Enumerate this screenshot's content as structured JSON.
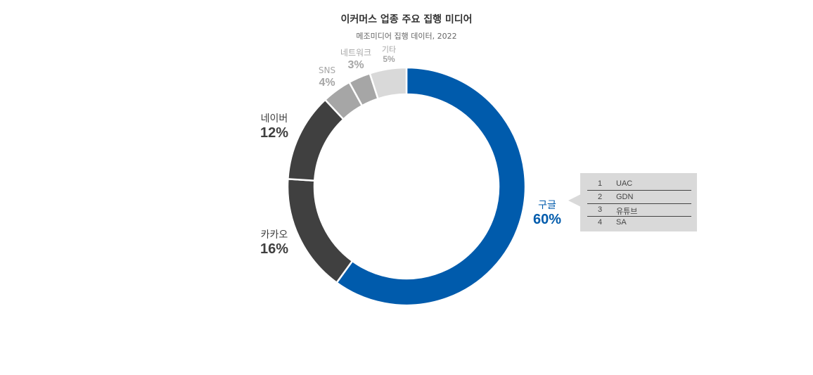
{
  "header": {
    "title": "이커머스 업종 주요 집행 미디어",
    "subtitle": "메조미디어 집행 데이터, 2022"
  },
  "chart_data": {
    "type": "pie",
    "donut": true,
    "title": "이커머스 업종 주요 집행 미디어",
    "subtitle": "메조미디어 집행 데이터, 2022",
    "slices": [
      {
        "label": "구글",
        "value": 60,
        "display": "60%",
        "color": "#005bac",
        "label_color": "#005bac"
      },
      {
        "label": "카카오",
        "value": 16,
        "display": "16%",
        "color": "#404040",
        "label_color": "#404040"
      },
      {
        "label": "네이버",
        "value": 12,
        "display": "12%",
        "color": "#404040",
        "label_color": "#404040"
      },
      {
        "label": "SNS",
        "value": 4,
        "display": "4%",
        "color": "#a6a6a6",
        "label_color": "#a6a6a6"
      },
      {
        "label": "네트워크",
        "value": 3,
        "display": "3%",
        "color": "#a6a6a6",
        "label_color": "#a6a6a6"
      },
      {
        "label": "기타",
        "value": 5,
        "display": "5%",
        "color": "#d9d9d9",
        "label_color": "#a6a6a6"
      }
    ],
    "callout": {
      "target": "구글",
      "rows": [
        {
          "rank": "1",
          "name": "UAC"
        },
        {
          "rank": "2",
          "name": "GDN"
        },
        {
          "rank": "3",
          "name": "유튜브"
        },
        {
          "rank": "4",
          "name": "SA"
        }
      ]
    }
  }
}
